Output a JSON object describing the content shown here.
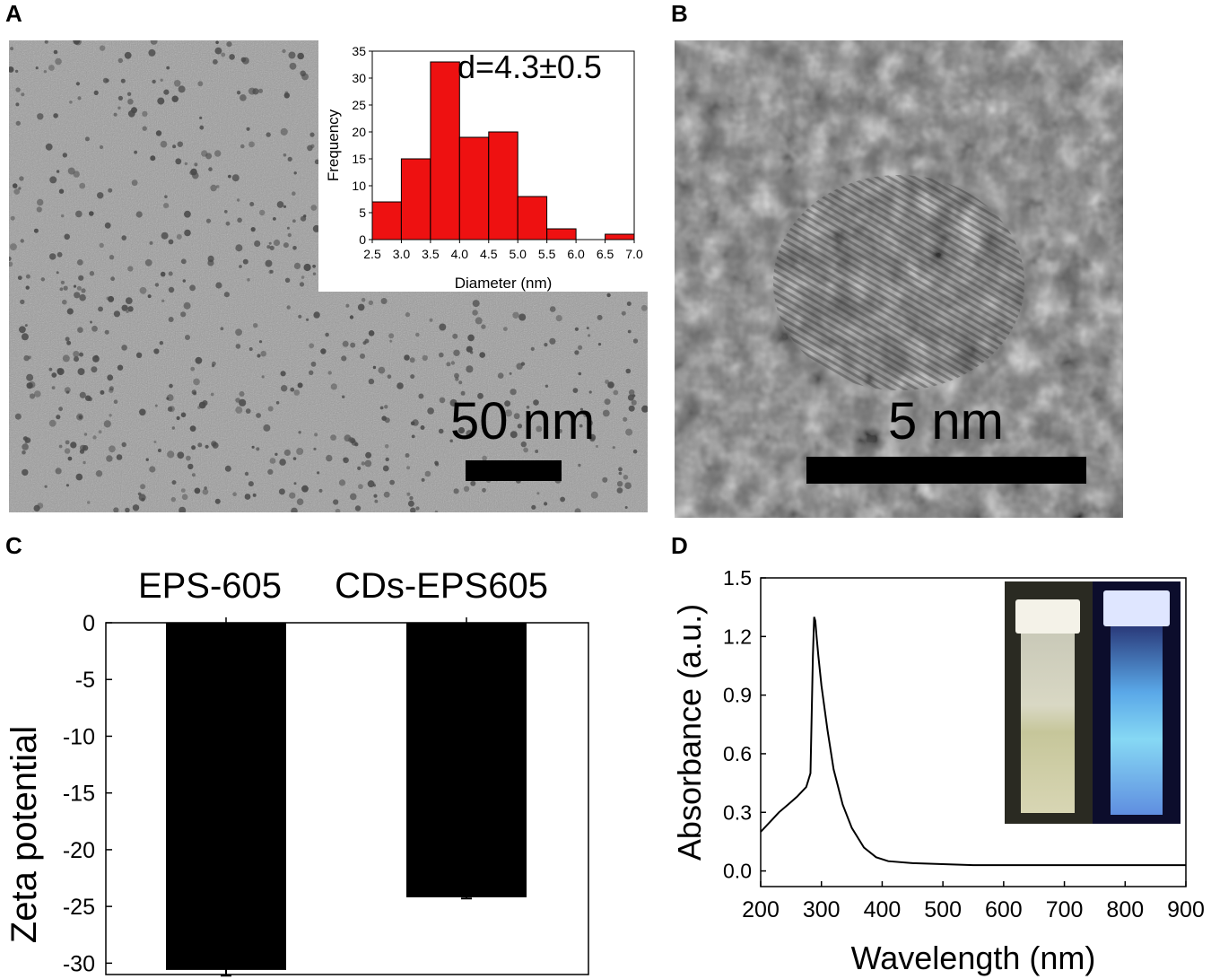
{
  "panels": {
    "a": {
      "letter": "A",
      "scale_label": "50 nm",
      "inset_annotation": "d=4.3±0.5"
    },
    "b": {
      "letter": "B",
      "scale_label": "5 nm"
    },
    "c": {
      "letter": "C"
    },
    "d": {
      "letter": "D"
    }
  },
  "chart_data": [
    {
      "id": "size-histogram",
      "type": "bar",
      "xlabel": "Diameter (nm)",
      "ylabel": "Frequency",
      "bin_edges": [
        2.5,
        3.0,
        3.5,
        4.0,
        4.5,
        5.0,
        5.5,
        6.0,
        6.5,
        7.0
      ],
      "values": [
        7,
        15,
        33,
        19,
        20,
        8,
        2,
        0,
        1
      ],
      "xticks": [
        "2.5",
        "3.0",
        "3.5",
        "4.0",
        "4.5",
        "5.0",
        "5.5",
        "6.0",
        "6.5",
        "7.0"
      ],
      "yticks": [
        "0",
        "5",
        "10",
        "15",
        "20",
        "25",
        "30",
        "35"
      ],
      "xlim": [
        2.5,
        7.0
      ],
      "ylim": [
        0,
        35
      ],
      "annotation": "d=4.3±0.5",
      "color": "#ee1111"
    },
    {
      "id": "zeta-potential",
      "type": "bar",
      "categories": [
        "EPS-605",
        "CDs-EPS605"
      ],
      "values": [
        -30.6,
        -24.2
      ],
      "errors": [
        0.5,
        0.1
      ],
      "ylabel": "Zeta potential",
      "yticks": [
        "0",
        "-5",
        "-10",
        "-15",
        "-20",
        "-25",
        "-30"
      ],
      "ylim": [
        -31,
        0
      ],
      "color": "#000000"
    },
    {
      "id": "uv-vis",
      "type": "line",
      "xlabel": "Wavelength (nm)",
      "ylabel": "Absorbance (a.u.)",
      "xticks": [
        "200",
        "300",
        "400",
        "500",
        "600",
        "700",
        "800",
        "900"
      ],
      "yticks": [
        "0.0",
        "0.3",
        "0.6",
        "0.9",
        "1.2",
        "1.5"
      ],
      "xlim": [
        200,
        900
      ],
      "ylim": [
        -0.08,
        1.5
      ],
      "x": [
        200,
        215,
        230,
        245,
        260,
        275,
        282,
        286,
        288,
        290,
        292,
        295,
        300,
        310,
        320,
        335,
        350,
        370,
        390,
        410,
        450,
        500,
        550,
        600,
        700,
        800,
        900
      ],
      "y": [
        0.2,
        0.25,
        0.3,
        0.34,
        0.38,
        0.43,
        0.5,
        1.1,
        1.3,
        1.28,
        1.2,
        1.1,
        0.95,
        0.72,
        0.52,
        0.34,
        0.22,
        0.12,
        0.07,
        0.05,
        0.04,
        0.035,
        0.03,
        0.03,
        0.03,
        0.03,
        0.03
      ]
    }
  ]
}
